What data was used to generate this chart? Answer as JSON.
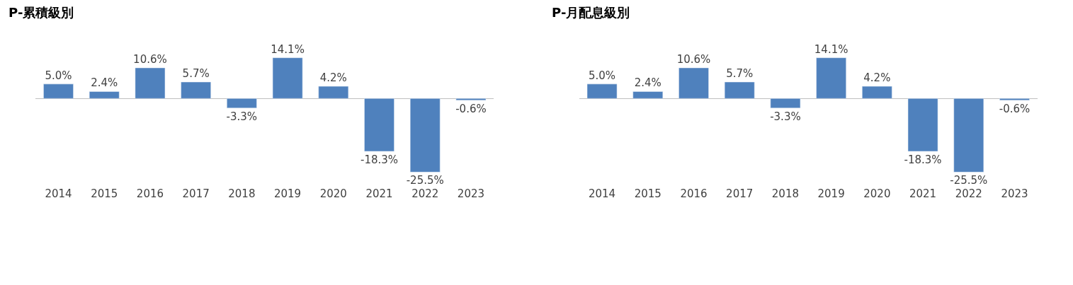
{
  "chart_data": [
    {
      "type": "bar",
      "title": "P-累積級別",
      "categories": [
        "2014",
        "2015",
        "2016",
        "2017",
        "2018",
        "2019",
        "2020",
        "2021",
        "2022",
        "2023"
      ],
      "series": [
        {
          "color": "#4f81bd",
          "values": [
            5.0,
            2.4,
            10.6,
            5.7,
            -3.3,
            14.1,
            4.2,
            -18.3,
            -25.5,
            -0.6
          ],
          "value_labels": [
            "5.0%",
            "2.4%",
            "10.6%",
            "5.7%",
            "-3.3%",
            "14.1%",
            "4.2%",
            "-18.3%",
            "-25.5%",
            "-0.6%"
          ]
        }
      ],
      "tick_labels": "x"
    },
    {
      "type": "bar",
      "title": "P-月配息級別",
      "categories": [
        "2014",
        "2015",
        "2016",
        "2017",
        "2018",
        "2019",
        "2020",
        "2021",
        "2022",
        "2023"
      ],
      "series": [
        {
          "color": "#4f81bd",
          "values": [
            5.0,
            2.4,
            10.6,
            5.7,
            -3.3,
            14.1,
            4.2,
            -18.3,
            -25.5,
            -0.6
          ],
          "value_labels": [
            "5.0%",
            "2.4%",
            "10.6%",
            "5.7%",
            "-3.3%",
            "14.1%",
            "4.2%",
            "-18.3%",
            "-25.5%",
            "-0.6%"
          ]
        }
      ],
      "tick_labels": "x"
    }
  ]
}
